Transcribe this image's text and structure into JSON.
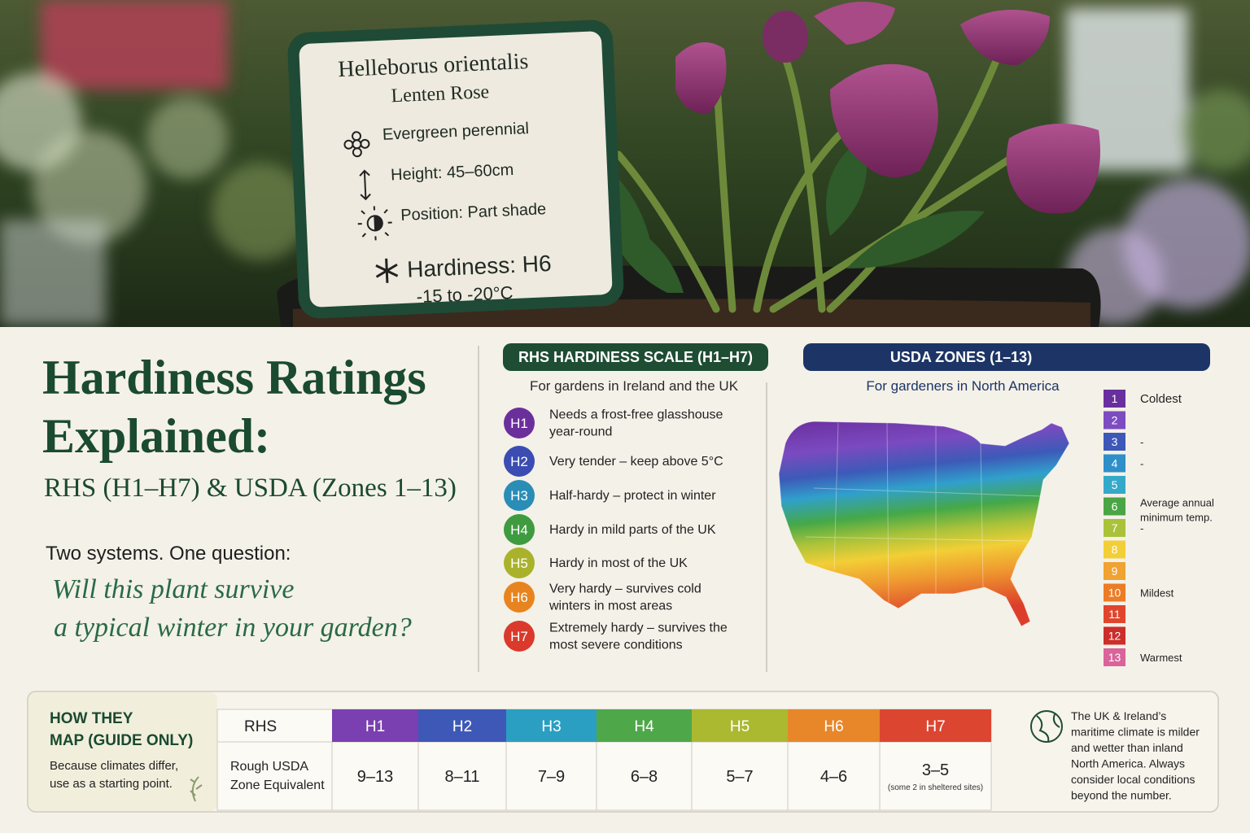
{
  "sign": {
    "name": "Helleborus orientalis",
    "common_name": "Lenten Rose",
    "features": [
      "Evergreen perennial",
      "Height: 45–60cm",
      "Position: Part shade"
    ],
    "hardiness": "Hardiness: H6",
    "temperature": "-15 to -20°C"
  },
  "header": {
    "title_lines": [
      "Hardiness Ratings",
      "Explained:"
    ],
    "subtitle": "RHS (H1–H7) & USDA (Zones 1–13)",
    "question_intro": "Two systems. One question:",
    "question_lines": [
      "Will this plant survive",
      "a typical winter in your garden?"
    ]
  },
  "rhs": {
    "title": "RHS HARDINESS SCALE (H1–H7)",
    "subtitle": "For gardens in Ireland and the UK",
    "ratings": [
      {
        "code": "H1",
        "color": "#6b2f9c",
        "description": [
          "Needs a frost-free glasshouse",
          "year-round"
        ]
      },
      {
        "code": "H2",
        "color": "#3b4db2",
        "description": [
          "Very tender – keep above 5°C"
        ]
      },
      {
        "code": "H3",
        "color": "#2a8db6",
        "description": [
          "Half-hardy – protect in winter"
        ]
      },
      {
        "code": "H4",
        "color": "#3f9b3f",
        "description": [
          "Hardy in mild parts of the UK"
        ]
      },
      {
        "code": "H5",
        "color": "#aab22c",
        "description": [
          "Hardy in most of the UK"
        ]
      },
      {
        "code": "H6",
        "color": "#e8841f",
        "description": [
          "Very hardy – survives cold",
          "winters in most areas"
        ]
      },
      {
        "code": "H7",
        "color": "#d93a2b",
        "description": [
          "Extremely hardy – survives the",
          "most severe conditions"
        ]
      }
    ]
  },
  "usda": {
    "title": "USDA ZONES (1–13)",
    "subtitle": "For gardeners in North America",
    "zones": [
      {
        "label": "1",
        "color": "#6a2f9e",
        "note": [
          "Coldest"
        ]
      },
      {
        "label": "2",
        "color": "#7d4cc0",
        "note": []
      },
      {
        "label": "3",
        "color": "#3d58b8",
        "note": [
          "-"
        ]
      },
      {
        "label": "4",
        "color": "#2f8fc8",
        "note": [
          "-"
        ]
      },
      {
        "label": "5",
        "color": "#35a9c9",
        "note": []
      },
      {
        "label": "6",
        "color": "#4aa544",
        "note": [
          "Average annual",
          "minimum temp."
        ]
      },
      {
        "label": "7",
        "color": "#a9c23a",
        "note": [
          "-"
        ]
      },
      {
        "label": "8",
        "color": "#f2cf36",
        "note": []
      },
      {
        "label": "9",
        "color": "#f0a232",
        "note": []
      },
      {
        "label": "10",
        "color": "#ec7c26",
        "note": [
          "Mildest"
        ]
      },
      {
        "label": "11",
        "color": "#e0462d",
        "note": []
      },
      {
        "label": "12",
        "color": "#cc2e2a",
        "note": []
      },
      {
        "label": "13",
        "color": "#d9639a",
        "note": [
          "Warmest"
        ]
      }
    ]
  },
  "mapping": {
    "title_lines": [
      "HOW THEY",
      "MAP (GUIDE ONLY)"
    ],
    "caption_lines": [
      "Because climates differ,",
      "use as a starting point."
    ],
    "row_header_top": "RHS",
    "row_header_bottom": [
      "Rough USDA",
      "Zone Equivalent"
    ],
    "columns": [
      {
        "rating": "H1",
        "color": "#7a3fb0",
        "zones": "9–13"
      },
      {
        "rating": "H2",
        "color": "#3e58b8",
        "zones": "8–11"
      },
      {
        "rating": "H3",
        "color": "#2a9fc2",
        "zones": "7–9"
      },
      {
        "rating": "H4",
        "color": "#4ea84a",
        "zones": "6–8"
      },
      {
        "rating": "H5",
        "color": "#aab92f",
        "zones": "5–7"
      },
      {
        "rating": "H6",
        "color": "#e8862a",
        "zones": "4–6"
      },
      {
        "rating": "H7",
        "color": "#dc4631",
        "zones": "3–5",
        "footnote": "(some 2 in sheltered sites)"
      }
    ],
    "note_lines": [
      "The UK & Ireland’s",
      "maritime climate is milder",
      "and wetter than inland",
      "North America. Always",
      "consider local conditions",
      "beyond the number."
    ]
  }
}
